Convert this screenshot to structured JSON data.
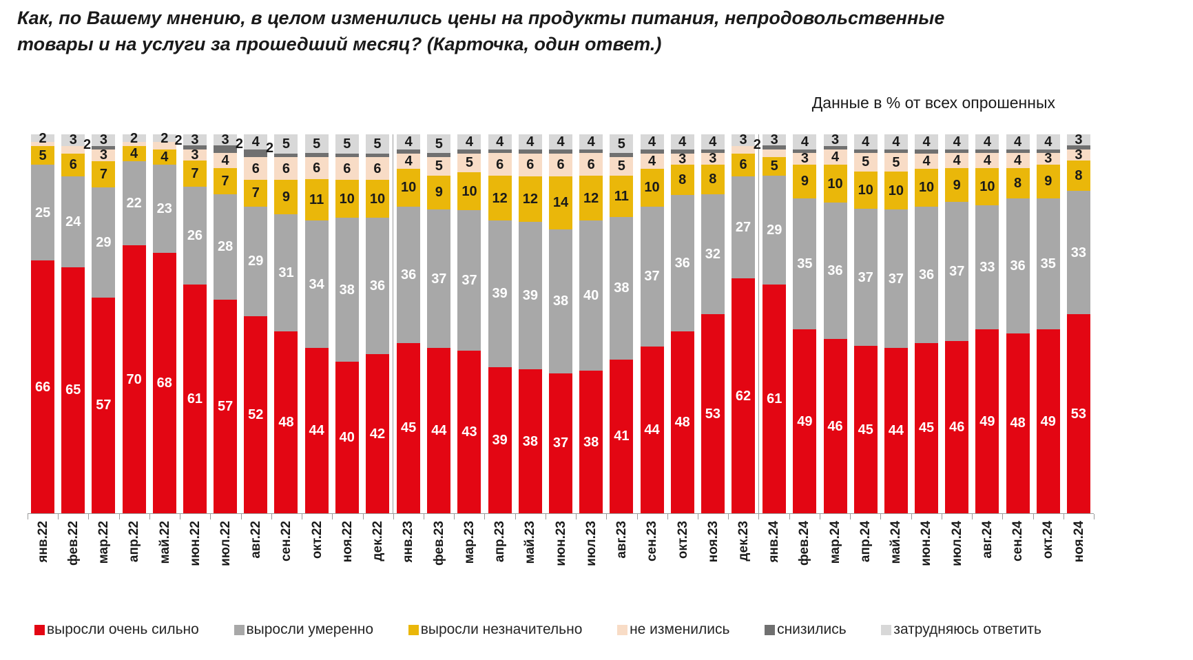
{
  "title": {
    "line1": "Как, по Вашему мнению, в целом изменились цены на продукты питания, непродовольственные",
    "line2": "товары и на услуги за прошедший месяц? (Карточка, один ответ.)"
  },
  "subtitle": "Данные в % от всех опрошенных",
  "chart_data": {
    "type": "bar",
    "stacked": true,
    "unit": "% от всех опрошенных",
    "ylim": [
      0,
      100
    ],
    "grid": false,
    "legend_position": "bottom",
    "categories": [
      "янв.22",
      "фев.22",
      "мар.22",
      "апр.22",
      "май.22",
      "июн.22",
      "июл.22",
      "авг.22",
      "сен.22",
      "окт.22",
      "ноя.22",
      "дек.22",
      "янв.23",
      "фев.23",
      "мар.23",
      "апр.23",
      "май.23",
      "июн.23",
      "июл.23",
      "авг.23",
      "сен.23",
      "окт.23",
      "ноя.23",
      "дек.23",
      "янв.24",
      "фев.24",
      "мар.24",
      "апр.24",
      "май.24",
      "июн.24",
      "июл.24",
      "авг.24",
      "сен.24",
      "окт.24",
      "ноя.24"
    ],
    "year_separator_before": [
      12,
      24
    ],
    "series": [
      {
        "name": "выросли очень сильно",
        "color": "#e30613",
        "label_color": "#ffffff",
        "values": [
          66,
          65,
          57,
          70,
          68,
          61,
          57,
          52,
          48,
          44,
          40,
          42,
          45,
          44,
          43,
          39,
          38,
          37,
          38,
          41,
          44,
          48,
          53,
          62,
          61,
          49,
          46,
          45,
          44,
          45,
          46,
          49,
          48,
          49,
          53
        ]
      },
      {
        "name": "выросли умеренно",
        "color": "#a8a8a8",
        "label_color": "#ffffff",
        "values": [
          25,
          24,
          29,
          22,
          23,
          26,
          28,
          29,
          31,
          34,
          38,
          36,
          36,
          37,
          37,
          39,
          39,
          38,
          40,
          38,
          37,
          36,
          32,
          27,
          29,
          35,
          36,
          37,
          37,
          36,
          37,
          33,
          36,
          35,
          33
        ]
      },
      {
        "name": "выросли незначительно",
        "color": "#eab70a",
        "label_color": "#1a1a1a",
        "values": [
          5,
          6,
          7,
          4,
          4,
          7,
          7,
          7,
          9,
          11,
          10,
          10,
          10,
          9,
          10,
          12,
          12,
          14,
          12,
          11,
          10,
          8,
          8,
          6,
          5,
          9,
          10,
          10,
          10,
          10,
          9,
          10,
          8,
          9,
          8
        ]
      },
      {
        "name": "не изменились",
        "color": "#f8dcc6",
        "label_color": "#1a1a1a",
        "values": [
          1,
          2,
          3,
          1,
          2,
          3,
          4,
          6,
          6,
          6,
          6,
          6,
          4,
          5,
          5,
          6,
          6,
          6,
          6,
          5,
          4,
          3,
          3,
          2,
          2,
          3,
          4,
          5,
          5,
          4,
          4,
          4,
          4,
          3,
          3
        ],
        "labels": [
          "",
          "2",
          "3",
          "",
          "2",
          "3",
          "4",
          "6",
          "6",
          "6",
          "6",
          "6",
          "4",
          "5",
          "5",
          "6",
          "6",
          "6",
          "6",
          "5",
          "4",
          "3",
          "3",
          "2",
          "",
          "3",
          "4",
          "5",
          "5",
          "4",
          "4",
          "4",
          "4",
          "3",
          "3"
        ]
      },
      {
        "name": "снизились",
        "color": "#707070",
        "label_color": "#1a1a1a",
        "values": [
          0,
          0,
          1,
          0,
          0,
          1,
          2,
          2,
          1,
          1,
          1,
          1,
          1,
          1,
          1,
          1,
          1,
          1,
          1,
          1,
          1,
          1,
          1,
          0,
          1,
          1,
          1,
          1,
          1,
          1,
          1,
          1,
          1,
          1,
          1
        ],
        "labels": [
          "",
          "",
          "",
          "",
          "",
          "",
          "2",
          "2",
          "",
          "",
          "",
          "",
          "",
          "",
          "",
          "",
          "",
          "",
          "",
          "",
          "",
          "",
          "",
          "",
          "",
          "",
          "",
          "",
          "",
          "",
          "",
          "",
          "",
          "",
          ""
        ]
      },
      {
        "name": "затрудняюсь ответить",
        "color": "#d8d8d8",
        "label_color": "#1a1a1a",
        "values": [
          2,
          3,
          3,
          2,
          2,
          3,
          3,
          4,
          5,
          5,
          5,
          5,
          4,
          5,
          4,
          4,
          4,
          4,
          4,
          5,
          4,
          4,
          4,
          3,
          3,
          4,
          3,
          4,
          4,
          4,
          4,
          4,
          4,
          4,
          3
        ]
      }
    ]
  }
}
